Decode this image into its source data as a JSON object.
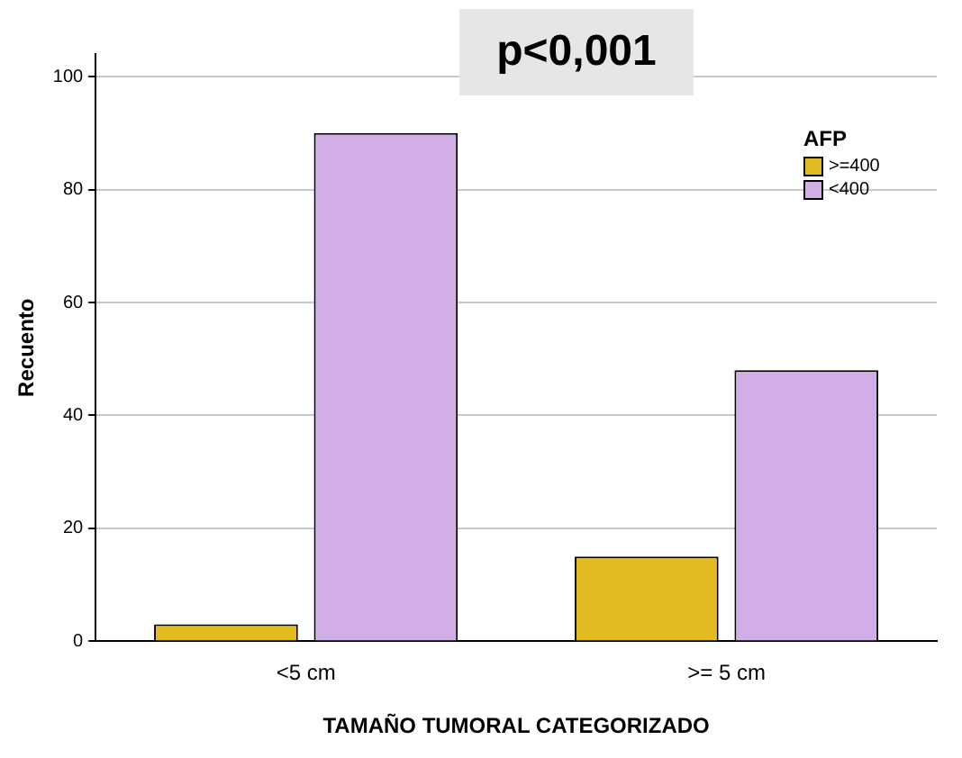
{
  "chart_data": {
    "type": "bar",
    "xlabel": "TAMAÑO TUMORAL CATEGORIZADO",
    "ylabel": "Recuento",
    "legend_title": "AFP",
    "annotations": [
      "p<0,001"
    ],
    "categories": [
      "<5 cm",
      ">= 5 cm"
    ],
    "series": [
      {
        "name": ">=400",
        "color": "#e1bb1f",
        "values": [
          3,
          15
        ]
      },
      {
        "name": "<400",
        "color": "#d2aee6",
        "values": [
          90,
          48
        ]
      }
    ],
    "ylim": [
      0,
      104
    ],
    "yticks": [
      0,
      20,
      40,
      60,
      80,
      100
    ],
    "grid": "y",
    "legend": "top right"
  }
}
